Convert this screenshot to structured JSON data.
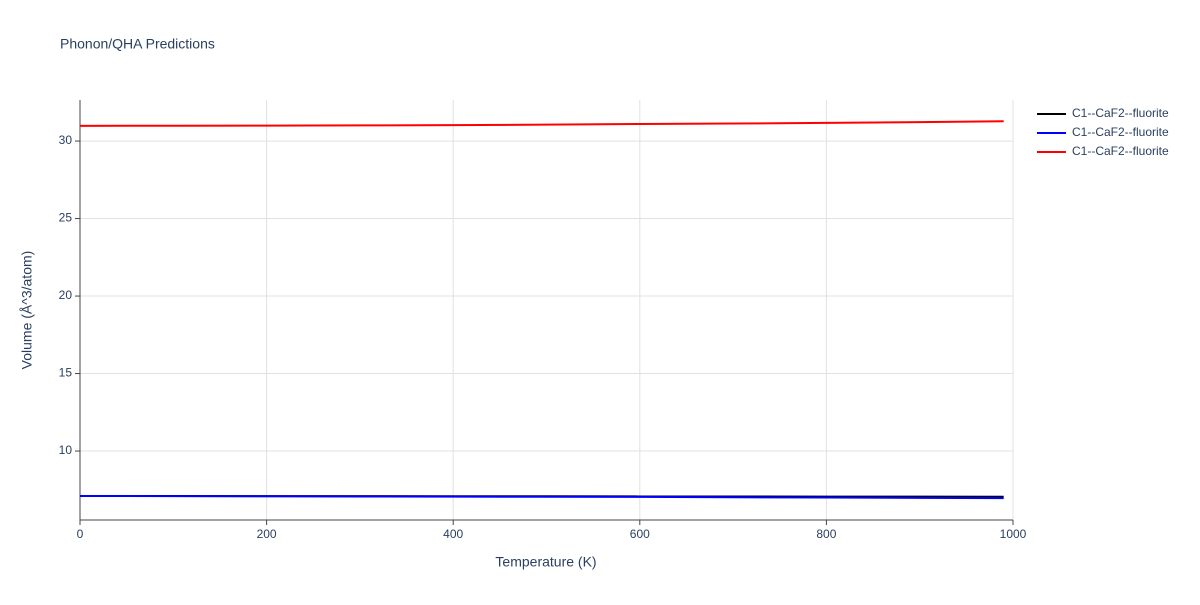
{
  "chart_data": {
    "type": "line",
    "title": "Phonon/QHA Predictions",
    "x_label": "Temperature (K)",
    "y_label": "Volume (Å^3/atom)",
    "x": [
      0,
      100,
      200,
      300,
      400,
      500,
      600,
      700,
      800,
      900,
      990
    ],
    "series": [
      {
        "name": "C1--CaF2--fluorite",
        "color": "#000000",
        "values": [
          7.1,
          7.1,
          7.09,
          7.09,
          7.08,
          7.08,
          7.07,
          7.07,
          7.06,
          7.06,
          7.05
        ]
      },
      {
        "name": "C1--CaF2--fluorite",
        "color": "#0000ff",
        "values": [
          7.1,
          7.09,
          7.08,
          7.07,
          7.06,
          7.05,
          7.04,
          7.02,
          7.0,
          6.98,
          6.96
        ]
      },
      {
        "name": "C1--CaF2--fluorite",
        "color": "#ff0000",
        "values": [
          30.98,
          30.99,
          31.0,
          31.01,
          31.03,
          31.06,
          31.1,
          31.13,
          31.17,
          31.22,
          31.28
        ]
      }
    ],
    "xlim": [
      0,
      1000
    ],
    "xticks": [
      0,
      200,
      400,
      600,
      800,
      1000
    ],
    "ylim": [
      5.55,
      32.65
    ],
    "yticks": [
      10,
      15,
      20,
      25,
      30
    ],
    "grid": true
  }
}
